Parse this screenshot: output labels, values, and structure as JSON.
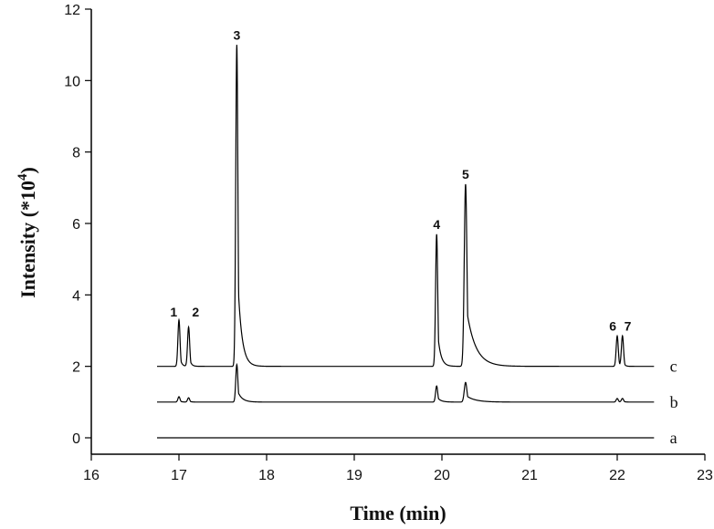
{
  "chart_data": {
    "type": "line",
    "title": "",
    "xlabel": "Time (min)",
    "ylabel_prefix": "Intensity (*10",
    "ylabel_exp": "4",
    "ylabel_suffix": ")",
    "xlim": [
      16,
      23
    ],
    "ylim": [
      0,
      12
    ],
    "x_ticks": [
      "16",
      "17",
      "18",
      "19",
      "20",
      "21",
      "22",
      "23"
    ],
    "y_ticks": [
      "0",
      "2",
      "4",
      "6",
      "8",
      "10",
      "12"
    ],
    "grid": false,
    "series": [
      {
        "name": "a",
        "baseline": 0,
        "x_start": 16.75,
        "x_end": 22.42,
        "peaks": []
      },
      {
        "name": "b",
        "baseline": 1,
        "x_start": 16.75,
        "x_end": 22.42,
        "peaks": [
          {
            "x": 17.0,
            "height": 0.15,
            "width": 0.012,
            "tail": 0.02
          },
          {
            "x": 17.11,
            "height": 0.12,
            "width": 0.012,
            "tail": 0.02
          },
          {
            "x": 17.66,
            "height": 1.05,
            "width": 0.012,
            "tail": 0.05
          },
          {
            "x": 19.94,
            "height": 0.45,
            "width": 0.012,
            "tail": 0.04
          },
          {
            "x": 20.27,
            "height": 0.55,
            "width": 0.015,
            "tail": 0.1
          },
          {
            "x": 22.0,
            "height": 0.1,
            "width": 0.012,
            "tail": 0.02
          },
          {
            "x": 22.06,
            "height": 0.1,
            "width": 0.012,
            "tail": 0.02
          }
        ]
      },
      {
        "name": "c",
        "baseline": 2,
        "x_start": 16.75,
        "x_end": 22.42,
        "peaks": [
          {
            "x": 17.0,
            "height": 1.3,
            "width": 0.012,
            "tail": 0.02
          },
          {
            "x": 17.11,
            "height": 1.1,
            "width": 0.012,
            "tail": 0.02
          },
          {
            "x": 17.66,
            "height": 9.0,
            "width": 0.012,
            "tail": 0.045
          },
          {
            "x": 19.94,
            "height": 3.7,
            "width": 0.012,
            "tail": 0.035
          },
          {
            "x": 20.27,
            "height": 5.1,
            "width": 0.015,
            "tail": 0.1
          },
          {
            "x": 22.0,
            "height": 0.85,
            "width": 0.012,
            "tail": 0.015
          },
          {
            "x": 22.06,
            "height": 0.85,
            "width": 0.012,
            "tail": 0.015
          }
        ]
      }
    ],
    "peak_labels": [
      {
        "text": "1",
        "x": 16.94,
        "y": 3.4
      },
      {
        "text": "2",
        "x": 17.19,
        "y": 3.4
      },
      {
        "text": "3",
        "x": 17.66,
        "y": 11.15
      },
      {
        "text": "4",
        "x": 19.94,
        "y": 5.85
      },
      {
        "text": "5",
        "x": 20.27,
        "y": 7.25
      },
      {
        "text": "6",
        "x": 21.95,
        "y": 3.0
      },
      {
        "text": "7",
        "x": 22.12,
        "y": 3.0
      }
    ]
  }
}
